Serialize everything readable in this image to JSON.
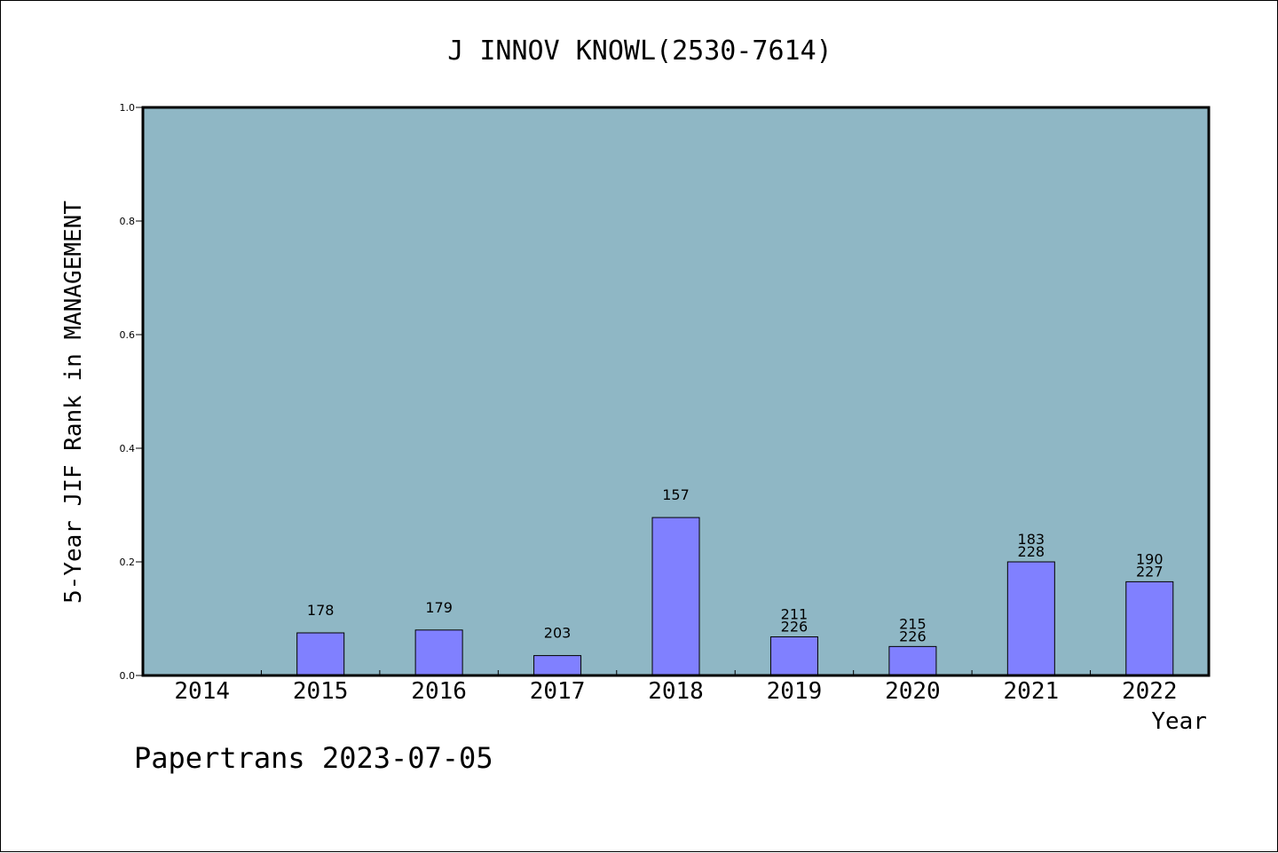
{
  "chart_data": {
    "type": "bar",
    "title": "J INNOV KNOWL(2530-7614)",
    "xlabel": "Year",
    "ylabel": "5-Year JIF Rank in MANAGEMENT",
    "footer": "Papertrans 2023-07-05",
    "ylim": [
      0,
      1.0
    ],
    "yticks": [
      "0.0",
      "0.2",
      "0.4",
      "0.6",
      "0.8",
      "1.0"
    ],
    "grid": false,
    "categories": [
      "2014",
      "2015",
      "2016",
      "2017",
      "2018",
      "2019",
      "2020",
      "2021",
      "2022"
    ],
    "values": [
      null,
      0.075,
      0.08,
      0.035,
      0.278,
      0.068,
      0.051,
      0.2,
      0.165
    ],
    "labels": [
      [],
      [
        "178"
      ],
      [
        "179"
      ],
      [
        "203"
      ],
      [
        "157"
      ],
      [
        "211",
        "226"
      ],
      [
        "215",
        "226"
      ],
      [
        "183",
        "228"
      ],
      [
        "190",
        "227"
      ]
    ],
    "colors": {
      "plot_background": "#8fb7c5",
      "bar_fill": "#8080ff",
      "axis": "#000000"
    }
  }
}
